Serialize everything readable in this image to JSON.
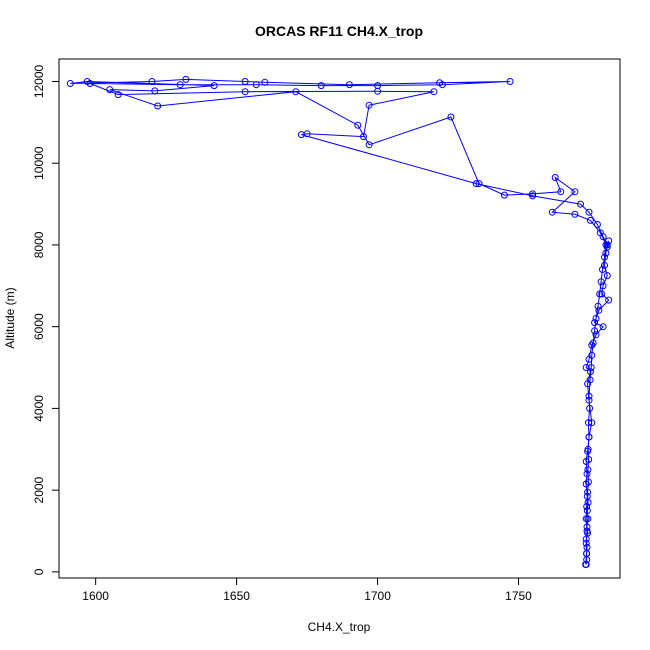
{
  "chart_data": {
    "type": "line",
    "title": "ORCAS RF11 CH4.X_trop",
    "xlabel": "CH4.X_trop",
    "ylabel": "Altitude (m)",
    "xlim": [
      1587,
      1786
    ],
    "ylim": [
      -150,
      12550
    ],
    "xticks": [
      1600,
      1650,
      1700,
      1750
    ],
    "yticks": [
      0,
      2000,
      4000,
      6000,
      8000,
      10000,
      12000
    ],
    "grid": false,
    "legend": "none",
    "series": [
      {
        "color": "#0000ff",
        "style": "line with circle markers",
        "points": [
          [
            1774.0,
            180
          ],
          [
            1774.2,
            300
          ],
          [
            1774.1,
            450
          ],
          [
            1774.3,
            600
          ],
          [
            1774.0,
            800
          ],
          [
            1774.5,
            950
          ],
          [
            1774.3,
            1100
          ],
          [
            1774.6,
            1300
          ],
          [
            1774.4,
            1500
          ],
          [
            1774.7,
            1700
          ],
          [
            1774.5,
            1950
          ],
          [
            1774.8,
            2200
          ],
          [
            1774.6,
            2500
          ],
          [
            1774.9,
            2750
          ],
          [
            1774.7,
            3000
          ],
          [
            1775.0,
            3300
          ],
          [
            1774.8,
            3650
          ],
          [
            1775.2,
            4000
          ],
          [
            1775.0,
            4300
          ],
          [
            1775.4,
            4700
          ],
          [
            1775.8,
            5000
          ],
          [
            1776.0,
            5300
          ],
          [
            1776.5,
            5600
          ],
          [
            1777.0,
            5900
          ],
          [
            1777.5,
            6200
          ],
          [
            1778.2,
            6500
          ],
          [
            1778.8,
            6800
          ],
          [
            1779.3,
            7100
          ],
          [
            1779.8,
            7400
          ],
          [
            1780.5,
            7700
          ],
          [
            1781.0,
            8000
          ],
          [
            1782.0,
            8100
          ],
          [
            1781.5,
            7950
          ],
          [
            1779.0,
            8300
          ],
          [
            1775.5,
            8600
          ],
          [
            1770.0,
            8750
          ],
          [
            1762.0,
            8800
          ],
          [
            1770.0,
            9300
          ],
          [
            1763.0,
            9650
          ],
          [
            1765.0,
            9300
          ],
          [
            1755.0,
            9250
          ],
          [
            1745.0,
            9220
          ],
          [
            1736.0,
            9500
          ],
          [
            1726.0,
            11130
          ],
          [
            1697.0,
            10450
          ],
          [
            1693.0,
            10930
          ],
          [
            1671.0,
            11750
          ],
          [
            1622.0,
            11400
          ],
          [
            1605.0,
            11800
          ],
          [
            1621.0,
            11770
          ],
          [
            1642.0,
            11900
          ],
          [
            1597.0,
            12000
          ],
          [
            1591.0,
            11950
          ],
          [
            1620.0,
            12000
          ],
          [
            1632.0,
            12050
          ],
          [
            1653.0,
            12000
          ],
          [
            1660.0,
            11980
          ],
          [
            1690.0,
            11920
          ],
          [
            1722.0,
            11970
          ],
          [
            1747.0,
            12000
          ],
          [
            1723.0,
            11920
          ],
          [
            1700.0,
            11900
          ],
          [
            1680.0,
            11900
          ],
          [
            1657.0,
            11920
          ],
          [
            1630.0,
            11920
          ],
          [
            1598.0,
            11950
          ],
          [
            1608.0,
            11680
          ],
          [
            1653.0,
            11750
          ],
          [
            1700.0,
            11760
          ],
          [
            1720.0,
            11750
          ],
          [
            1697.0,
            11420
          ],
          [
            1695.0,
            10650
          ],
          [
            1675.0,
            10720
          ],
          [
            1673.0,
            10700
          ],
          [
            1735.0,
            9500
          ],
          [
            1755.0,
            9200
          ],
          [
            1772.0,
            9000
          ],
          [
            1775.0,
            8800
          ],
          [
            1778.0,
            8500
          ],
          [
            1780.0,
            8200
          ],
          [
            1781.5,
            8000
          ],
          [
            1781.0,
            7800
          ],
          [
            1780.5,
            7500
          ],
          [
            1781.5,
            7250
          ],
          [
            1780.0,
            7000
          ],
          [
            1779.5,
            6800
          ],
          [
            1782.0,
            6650
          ],
          [
            1778.5,
            6400
          ],
          [
            1777.0,
            6100
          ],
          [
            1780.0,
            6000
          ],
          [
            1777.5,
            5800
          ],
          [
            1776.0,
            5550
          ],
          [
            1775.0,
            5200
          ],
          [
            1774.0,
            5000
          ],
          [
            1775.5,
            4900
          ],
          [
            1774.5,
            4600
          ],
          [
            1775.0,
            4200
          ],
          [
            1776.0,
            3650
          ],
          [
            1775.0,
            3300
          ],
          [
            1774.5,
            2950
          ],
          [
            1774.0,
            2700
          ],
          [
            1774.3,
            2400
          ],
          [
            1774.0,
            2150
          ],
          [
            1774.4,
            1850
          ],
          [
            1774.2,
            1600
          ],
          [
            1774.0,
            1300
          ],
          [
            1774.3,
            1000
          ],
          [
            1774.0,
            700
          ],
          [
            1774.2,
            450
          ],
          [
            1773.8,
            180
          ]
        ]
      }
    ]
  }
}
